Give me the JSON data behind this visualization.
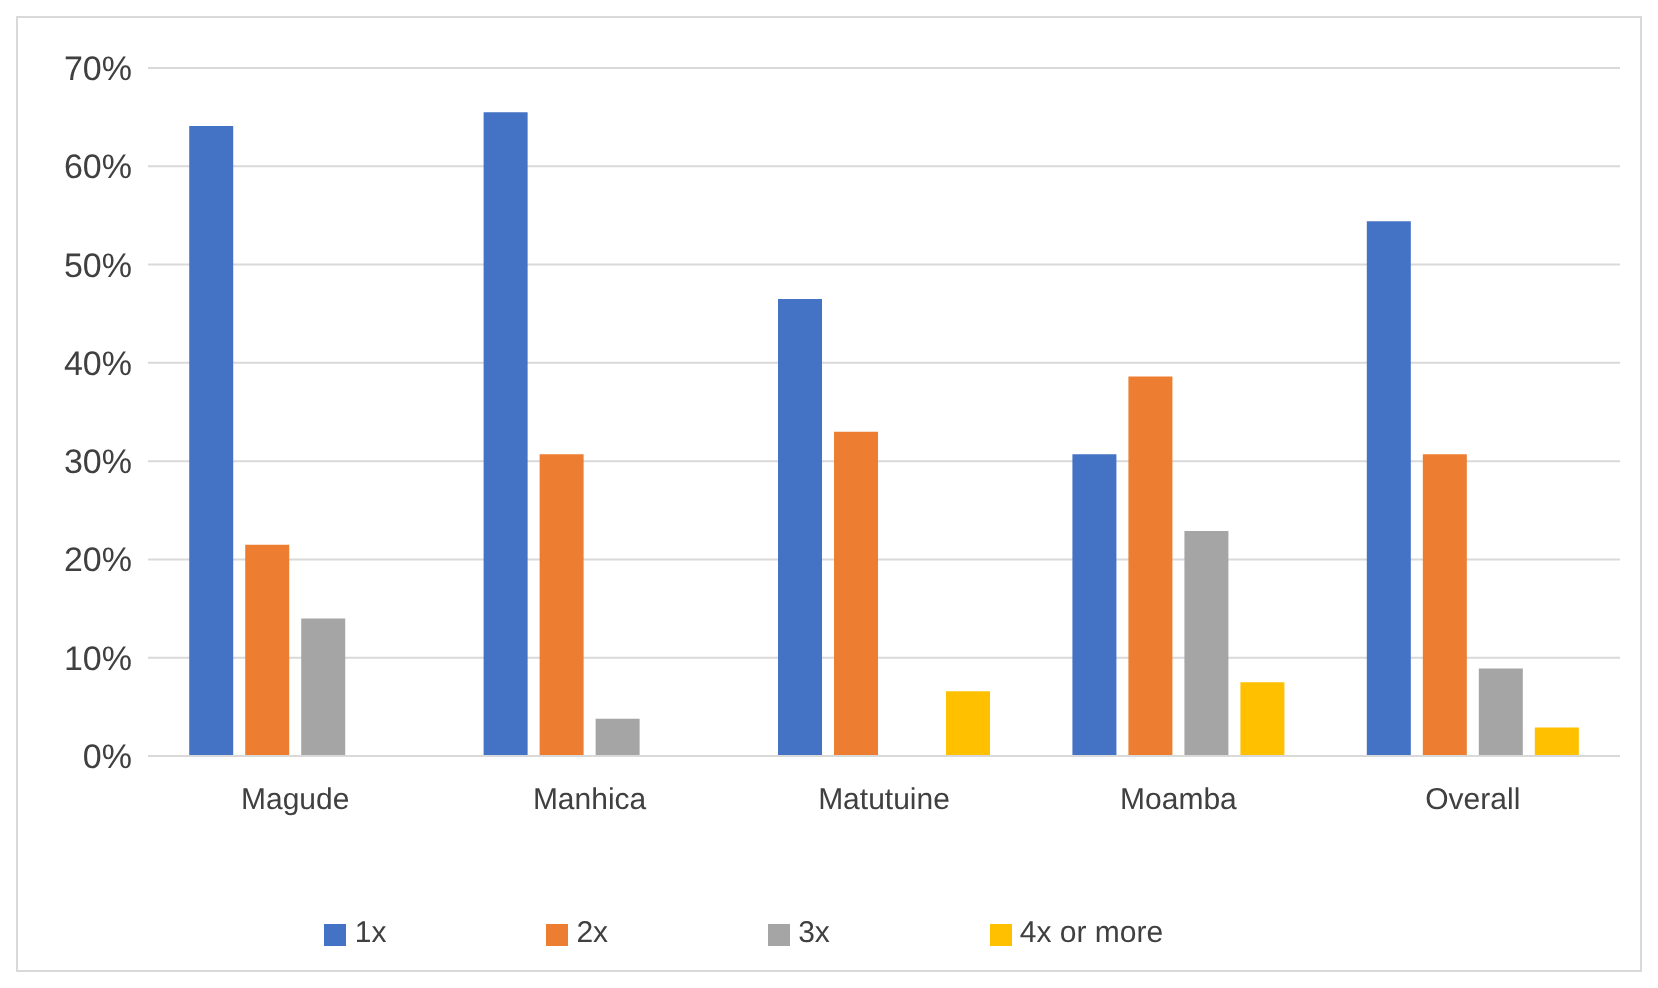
{
  "chart_data": {
    "type": "bar",
    "categories": [
      "Magude",
      "Manhica",
      "Matutuine",
      "Moamba",
      "Overall"
    ],
    "series": [
      {
        "name": "1x",
        "color": "#4472c4",
        "values": [
          64.1,
          65.5,
          46.5,
          30.7,
          54.4
        ]
      },
      {
        "name": "2x",
        "color": "#ed7d31",
        "values": [
          21.5,
          30.7,
          33.0,
          38.6,
          30.7
        ]
      },
      {
        "name": "3x",
        "color": "#a5a5a5",
        "values": [
          14.0,
          3.8,
          0,
          22.9,
          8.9
        ]
      },
      {
        "name": "4x or more",
        "color": "#ffc000",
        "values": [
          0,
          0,
          6.6,
          7.5,
          2.9
        ]
      }
    ],
    "ylim": [
      0,
      70
    ],
    "yticks": [
      {
        "value": 0,
        "label": "0%"
      },
      {
        "value": 10,
        "label": "10%"
      },
      {
        "value": 20,
        "label": "20%"
      },
      {
        "value": 30,
        "label": "30%"
      },
      {
        "value": 40,
        "label": "40%"
      },
      {
        "value": 50,
        "label": "50%"
      },
      {
        "value": 60,
        "label": "60%"
      },
      {
        "value": 70,
        "label": "70%"
      }
    ],
    "grid": "y",
    "legend": "bottom"
  }
}
